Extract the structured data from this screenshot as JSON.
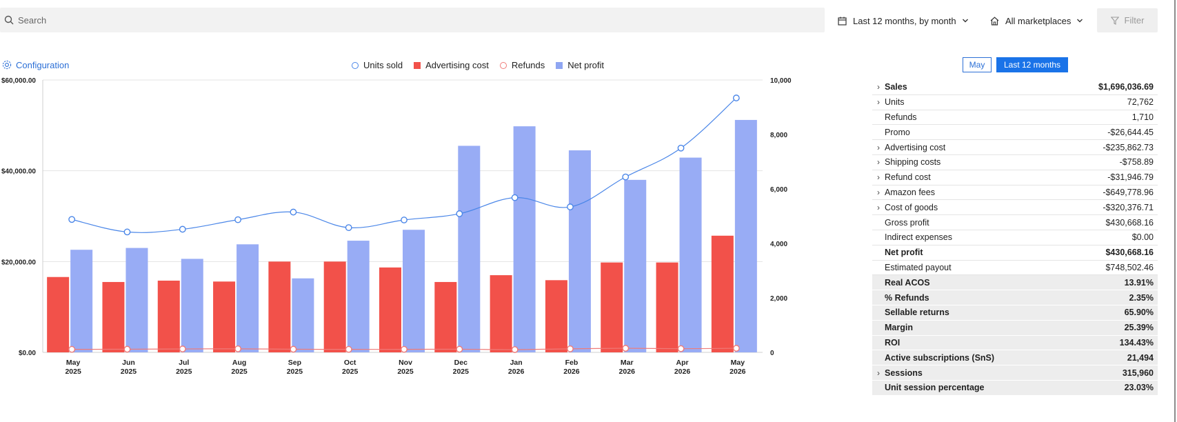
{
  "search": {
    "placeholder": "Search"
  },
  "toolbar": {
    "period": "Last 12 months, by month",
    "marketplace": "All marketplaces",
    "filter": "Filter"
  },
  "config_label": "Configuration",
  "legend": [
    {
      "label": "Units sold",
      "symbol": "circle",
      "color": "#4a86e8"
    },
    {
      "label": "Advertising cost",
      "symbol": "square",
      "color": "#f2514a"
    },
    {
      "label": "Refunds",
      "symbol": "circle",
      "color": "#ef7b78"
    },
    {
      "label": "Net profit",
      "symbol": "square",
      "color": "#8fa6f2"
    }
  ],
  "toggle": {
    "may": "May",
    "last12": "Last 12 months"
  },
  "chart_data": {
    "type": "bar",
    "categories": [
      [
        "May",
        "2025"
      ],
      [
        "Jun",
        "2025"
      ],
      [
        "Jul",
        "2025"
      ],
      [
        "Aug",
        "2025"
      ],
      [
        "Sep",
        "2025"
      ],
      [
        "Oct",
        "2025"
      ],
      [
        "Nov",
        "2025"
      ],
      [
        "Dec",
        "2025"
      ],
      [
        "Jan",
        "2026"
      ],
      [
        "Feb",
        "2026"
      ],
      [
        "Mar",
        "2026"
      ],
      [
        "Apr",
        "2026"
      ],
      [
        "May",
        "2026"
      ]
    ],
    "y_left": {
      "ticks": [
        "$0.00",
        "$20,000.00",
        "$40,000.00",
        "$60,000.00"
      ],
      "tick_values": [
        0,
        20000,
        40000,
        60000
      ],
      "ylim": [
        0,
        60000
      ]
    },
    "y_right": {
      "ticks": [
        "0",
        "2,000",
        "4,000",
        "6,000",
        "8,000",
        "10,000"
      ],
      "tick_values": [
        0,
        2000,
        4000,
        6000,
        8000,
        10000
      ],
      "ylim": [
        0,
        10000
      ]
    },
    "grid": true,
    "series": [
      {
        "name": "Advertising cost",
        "kind": "bar",
        "axis": "left",
        "color": "#f2514a",
        "values": [
          16600,
          15500,
          15800,
          15600,
          20000,
          20000,
          18700,
          15500,
          17000,
          15900,
          19800,
          19800,
          25700
        ]
      },
      {
        "name": "Net profit",
        "kind": "bar",
        "axis": "left",
        "color": "#98acf5",
        "values": [
          22600,
          23000,
          20600,
          23800,
          16300,
          24600,
          27000,
          45500,
          49800,
          44500,
          38000,
          42900,
          51200
        ]
      },
      {
        "name": "Units sold",
        "kind": "line",
        "axis": "right",
        "color": "#4a86e8",
        "values": [
          4880,
          4420,
          4520,
          4870,
          5150,
          4580,
          4860,
          5090,
          5680,
          5340,
          6440,
          7500,
          9340
        ]
      },
      {
        "name": "Refunds",
        "kind": "line",
        "axis": "right",
        "color": "#ef7b78",
        "values": [
          110,
          115,
          125,
          130,
          115,
          110,
          110,
          115,
          100,
          130,
          150,
          135,
          150
        ]
      }
    ]
  },
  "summary": [
    {
      "label": "Sales",
      "value": "$1,696,036.69",
      "chevron": true,
      "bold": true,
      "shade": false
    },
    {
      "label": "Units",
      "value": "72,762",
      "chevron": true,
      "bold": false,
      "shade": false
    },
    {
      "label": "Refunds",
      "value": "1,710",
      "chevron": false,
      "bold": false,
      "shade": false
    },
    {
      "label": "Promo",
      "value": "-$26,644.45",
      "chevron": false,
      "bold": false,
      "shade": false
    },
    {
      "label": "Advertising cost",
      "value": "-$235,862.73",
      "chevron": true,
      "bold": false,
      "shade": false
    },
    {
      "label": "Shipping costs",
      "value": "-$758.89",
      "chevron": true,
      "bold": false,
      "shade": false
    },
    {
      "label": "Refund cost",
      "value": "-$31,946.79",
      "chevron": true,
      "bold": false,
      "shade": false
    },
    {
      "label": "Amazon fees",
      "value": "-$649,778.96",
      "chevron": true,
      "bold": false,
      "shade": false
    },
    {
      "label": "Cost of goods",
      "value": "-$320,376.71",
      "chevron": true,
      "bold": false,
      "shade": false
    },
    {
      "label": "Gross profit",
      "value": "$430,668.16",
      "chevron": false,
      "bold": false,
      "shade": false
    },
    {
      "label": "Indirect expenses",
      "value": "$0.00",
      "chevron": false,
      "bold": false,
      "shade": false
    },
    {
      "label": "Net profit",
      "value": "$430,668.16",
      "chevron": false,
      "bold": true,
      "shade": false
    },
    {
      "label": "Estimated payout",
      "value": "$748,502.46",
      "chevron": false,
      "bold": false,
      "shade": false
    },
    {
      "label": "Real ACOS",
      "value": "13.91%",
      "chevron": false,
      "bold": true,
      "shade": true
    },
    {
      "label": "% Refunds",
      "value": "2.35%",
      "chevron": false,
      "bold": true,
      "shade": true
    },
    {
      "label": "Sellable returns",
      "value": "65.90%",
      "chevron": false,
      "bold": true,
      "shade": true
    },
    {
      "label": "Margin",
      "value": "25.39%",
      "chevron": false,
      "bold": true,
      "shade": true
    },
    {
      "label": "ROI",
      "value": "134.43%",
      "chevron": false,
      "bold": true,
      "shade": true
    },
    {
      "label": "Active subscriptions (SnS)",
      "value": "21,494",
      "chevron": false,
      "bold": true,
      "shade": true
    },
    {
      "label": "Sessions",
      "value": "315,960",
      "chevron": true,
      "bold": true,
      "shade": true
    },
    {
      "label": "Unit session percentage",
      "value": "23.03%",
      "chevron": false,
      "bold": true,
      "shade": true
    }
  ]
}
